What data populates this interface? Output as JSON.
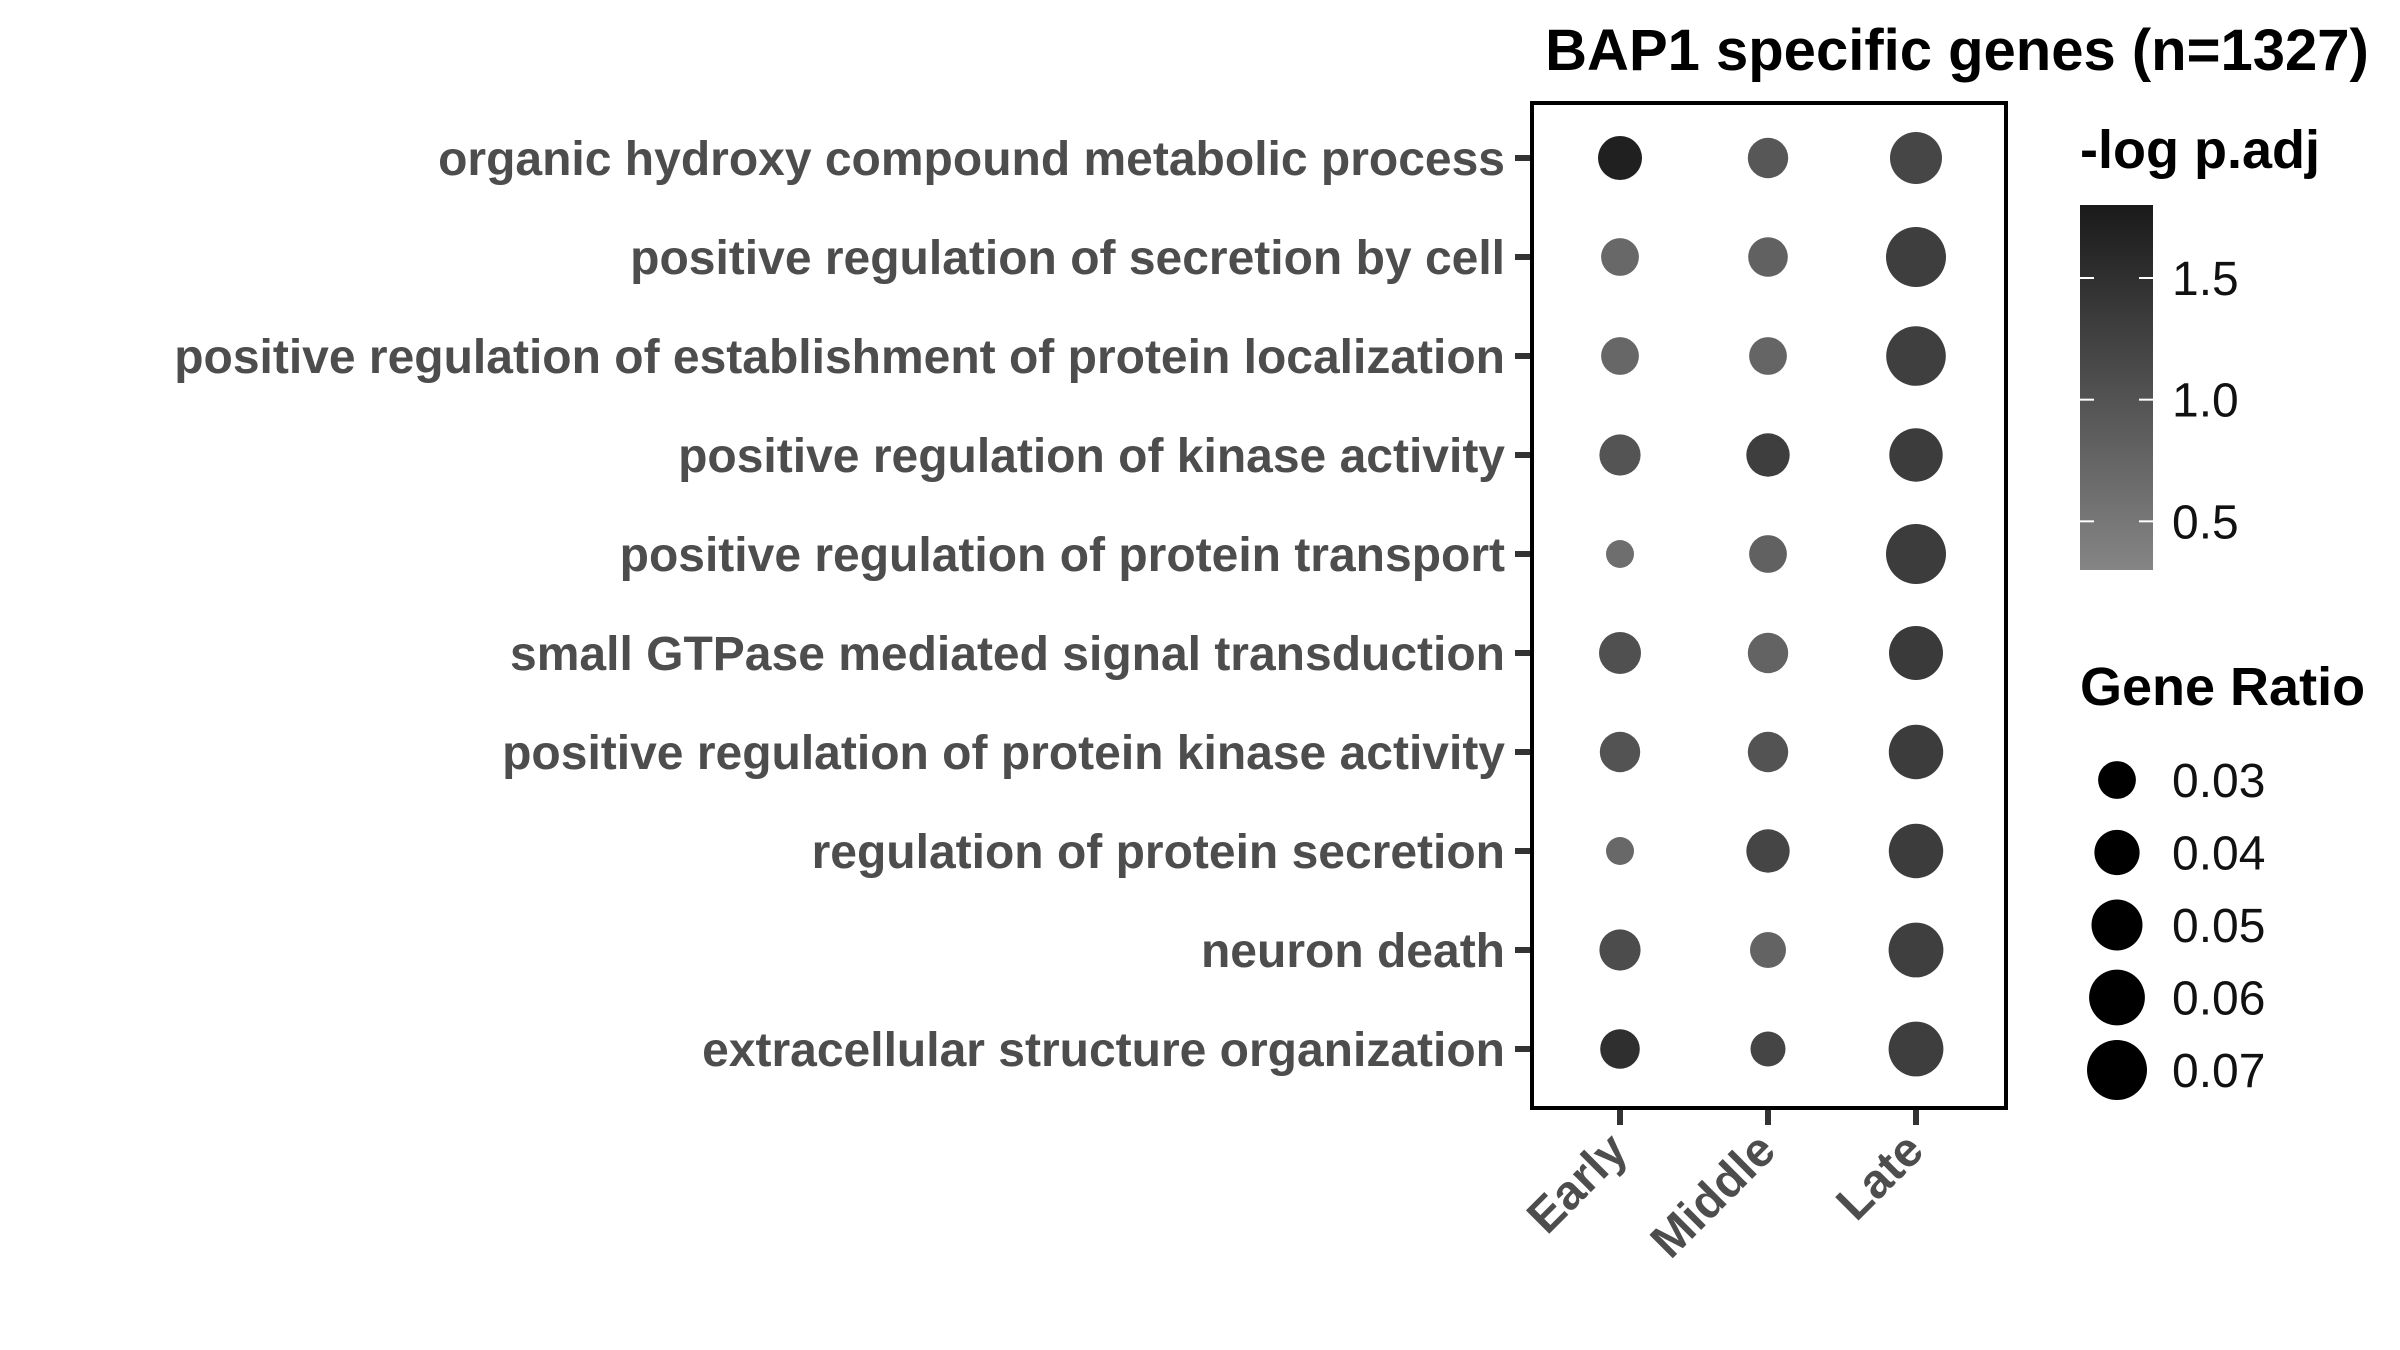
{
  "chart_data": {
    "type": "scatter",
    "subtype": "dot-plot",
    "title": "BAP1 specific genes (n=1327)",
    "x_categories": [
      "Early",
      "Middle",
      "Late"
    ],
    "y_categories": [
      "organic hydroxy compound metabolic process",
      "positive regulation of secretion by cell",
      "positive regulation of establishment of protein localization",
      "positive regulation of kinase activity",
      "positive regulation of protein transport",
      "small GTPase mediated signal transduction",
      "positive regulation of protein kinase activity",
      "regulation of protein secretion",
      "neuron death",
      "extracellular structure organization"
    ],
    "points": [
      {
        "term": "organic hydroxy compound metabolic process",
        "stage": "Early",
        "gene_ratio": 0.038,
        "neg_log_padj": 1.72
      },
      {
        "term": "organic hydroxy compound metabolic process",
        "stage": "Middle",
        "gene_ratio": 0.033,
        "neg_log_padj": 0.95
      },
      {
        "term": "organic hydroxy compound metabolic process",
        "stage": "Late",
        "gene_ratio": 0.052,
        "neg_log_padj": 1.18
      },
      {
        "term": "positive regulation of secretion by cell",
        "stage": "Early",
        "gene_ratio": 0.03,
        "neg_log_padj": 0.7
      },
      {
        "term": "positive regulation of secretion by cell",
        "stage": "Middle",
        "gene_ratio": 0.032,
        "neg_log_padj": 0.8
      },
      {
        "term": "positive regulation of secretion by cell",
        "stage": "Late",
        "gene_ratio": 0.07,
        "neg_log_padj": 1.3
      },
      {
        "term": "positive regulation of establishment of protein localization",
        "stage": "Early",
        "gene_ratio": 0.03,
        "neg_log_padj": 0.72
      },
      {
        "term": "positive regulation of establishment of protein localization",
        "stage": "Middle",
        "gene_ratio": 0.03,
        "neg_log_padj": 0.75
      },
      {
        "term": "positive regulation of establishment of protein localization",
        "stage": "Late",
        "gene_ratio": 0.069,
        "neg_log_padj": 1.28
      },
      {
        "term": "positive regulation of kinase activity",
        "stage": "Early",
        "gene_ratio": 0.034,
        "neg_log_padj": 0.98
      },
      {
        "term": "positive regulation of kinase activity",
        "stage": "Middle",
        "gene_ratio": 0.037,
        "neg_log_padj": 1.3
      },
      {
        "term": "positive regulation of kinase activity",
        "stage": "Late",
        "gene_ratio": 0.055,
        "neg_log_padj": 1.32
      },
      {
        "term": "positive regulation of protein transport",
        "stage": "Early",
        "gene_ratio": 0.022,
        "neg_log_padj": 0.62
      },
      {
        "term": "positive regulation of protein transport",
        "stage": "Middle",
        "gene_ratio": 0.03,
        "neg_log_padj": 0.8
      },
      {
        "term": "positive regulation of protein transport",
        "stage": "Late",
        "gene_ratio": 0.07,
        "neg_log_padj": 1.32
      },
      {
        "term": "small GTPase mediated signal transduction",
        "stage": "Early",
        "gene_ratio": 0.035,
        "neg_log_padj": 1.05
      },
      {
        "term": "small GTPase mediated signal transduction",
        "stage": "Middle",
        "gene_ratio": 0.033,
        "neg_log_padj": 0.78
      },
      {
        "term": "small GTPase mediated signal transduction",
        "stage": "Late",
        "gene_ratio": 0.056,
        "neg_log_padj": 1.35
      },
      {
        "term": "positive regulation of protein kinase activity",
        "stage": "Early",
        "gene_ratio": 0.033,
        "neg_log_padj": 1.0
      },
      {
        "term": "positive regulation of protein kinase activity",
        "stage": "Middle",
        "gene_ratio": 0.033,
        "neg_log_padj": 1.0
      },
      {
        "term": "positive regulation of protein kinase activity",
        "stage": "Late",
        "gene_ratio": 0.057,
        "neg_log_padj": 1.33
      },
      {
        "term": "regulation of protein secretion",
        "stage": "Early",
        "gene_ratio": 0.022,
        "neg_log_padj": 0.7
      },
      {
        "term": "regulation of protein secretion",
        "stage": "Middle",
        "gene_ratio": 0.037,
        "neg_log_padj": 1.2
      },
      {
        "term": "regulation of protein secretion",
        "stage": "Late",
        "gene_ratio": 0.057,
        "neg_log_padj": 1.32
      },
      {
        "term": "neuron death",
        "stage": "Early",
        "gene_ratio": 0.034,
        "neg_log_padj": 1.1
      },
      {
        "term": "neuron death",
        "stage": "Middle",
        "gene_ratio": 0.028,
        "neg_log_padj": 0.78
      },
      {
        "term": "neuron death",
        "stage": "Late",
        "gene_ratio": 0.058,
        "neg_log_padj": 1.28
      },
      {
        "term": "extracellular structure organization",
        "stage": "Early",
        "gene_ratio": 0.032,
        "neg_log_padj": 1.5
      },
      {
        "term": "extracellular structure organization",
        "stage": "Middle",
        "gene_ratio": 0.027,
        "neg_log_padj": 1.2
      },
      {
        "term": "extracellular structure organization",
        "stage": "Late",
        "gene_ratio": 0.058,
        "neg_log_padj": 1.3
      }
    ],
    "color_legend": {
      "title": "-log p.adj",
      "ticks": [
        "0.5",
        "1.0",
        "1.5"
      ],
      "tick_values": [
        0.5,
        1.0,
        1.5
      ],
      "range": [
        0.3,
        1.8
      ],
      "color_low": "#858585",
      "color_high": "#1a1a1a"
    },
    "size_legend": {
      "title": "Gene Ratio",
      "labels": [
        "0.03",
        "0.04",
        "0.05",
        "0.06",
        "0.07"
      ],
      "values": [
        0.03,
        0.04,
        0.05,
        0.06,
        0.07
      ]
    },
    "grid": false,
    "legend_position": "right"
  }
}
